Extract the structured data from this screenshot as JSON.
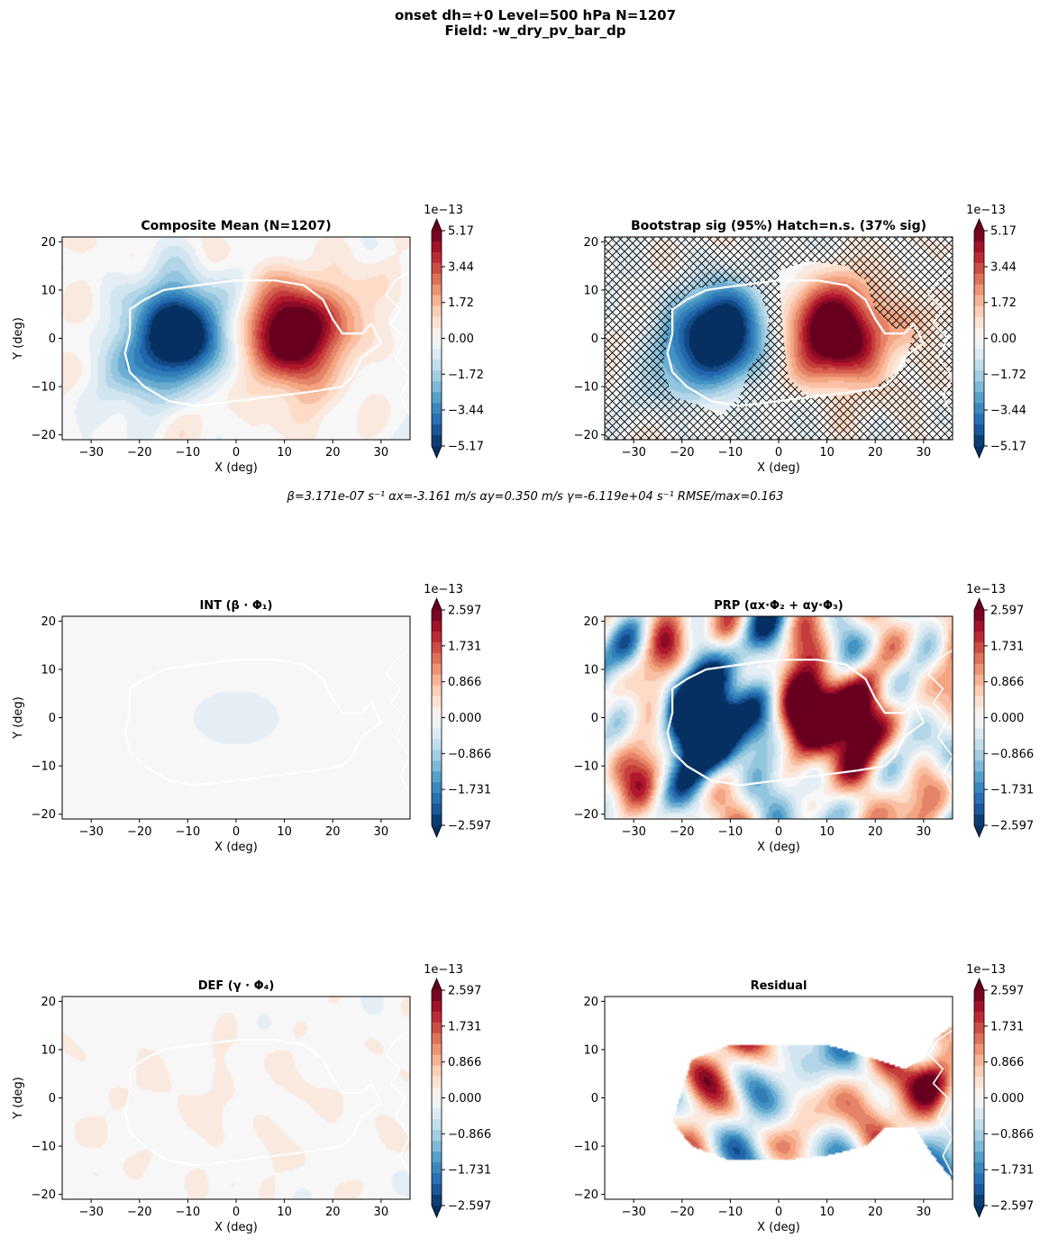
{
  "figure": {
    "title_line1": "onset  dh=+0   Level=500 hPa   N=1207",
    "title_line2": "Field: -w_dry_pv_bar_dp",
    "fit_params": "β=3.171e-07 s⁻¹   αx=-3.161 m/s   αy=0.350 m/s   γ=-6.119e+04 s⁻¹   RMSE/max=0.163"
  },
  "colormap": {
    "name": "RdBu_r",
    "stops": [
      "#053061",
      "#2166ac",
      "#4393c3",
      "#92c5de",
      "#d1e5f0",
      "#f7f7f7",
      "#fddbc7",
      "#f4a582",
      "#d6604d",
      "#b2182b",
      "#67001f"
    ],
    "contour_color": "#ffffff"
  },
  "chart_data": [
    {
      "id": "composite",
      "type": "heatmap",
      "title": "Composite Mean  (N=1207)",
      "xlabel": "X (deg)",
      "ylabel": "Y (deg)",
      "xlim": [
        -36,
        36
      ],
      "ylim": [
        -21,
        21
      ],
      "xticks": [
        "−30",
        "−20",
        "−10",
        "0",
        "10",
        "20",
        "30"
      ],
      "yticks": [
        "20",
        "10",
        "0",
        "−10",
        "−20"
      ],
      "colorbar": {
        "scale": "1e−13",
        "ticks": [
          "5.17",
          "3.44",
          "1.72",
          "0.00",
          "−1.72",
          "−3.44",
          "−5.17"
        ],
        "vmax": 5.17
      },
      "blobs": [
        {
          "x": -12,
          "y": 1,
          "sx": 6.5,
          "sy": 7,
          "amp": -7.0
        },
        {
          "x": 12,
          "y": 1,
          "sx": 6.5,
          "sy": 7,
          "amp": 7.0
        },
        {
          "x": -22,
          "y": -8,
          "sx": 5,
          "sy": 6,
          "amp": -1.5
        },
        {
          "x": 28,
          "y": 4,
          "sx": 5,
          "sy": 6,
          "amp": 1.0
        }
      ],
      "noise": 0.35,
      "hatch": false,
      "mask": false
    },
    {
      "id": "bootstrap",
      "type": "heatmap",
      "title": "Bootstrap sig (95%)  Hatch=n.s.  (37% sig)",
      "xlabel": "X (deg)",
      "ylabel": "",
      "xlim": [
        -36,
        36
      ],
      "ylim": [
        -21,
        21
      ],
      "xticks": [
        "−30",
        "−20",
        "−10",
        "0",
        "10",
        "20",
        "30"
      ],
      "yticks": [
        "20",
        "10",
        "0",
        "−10",
        "−20"
      ],
      "colorbar": {
        "scale": "1e−13",
        "ticks": [
          "5.17",
          "3.44",
          "1.72",
          "0.00",
          "−1.72",
          "−3.44",
          "−5.17"
        ],
        "vmax": 5.17
      },
      "blobs": [
        {
          "x": -12,
          "y": 1,
          "sx": 6.5,
          "sy": 7,
          "amp": -7.0
        },
        {
          "x": 12,
          "y": 1,
          "sx": 6.5,
          "sy": 7,
          "amp": 7.0
        },
        {
          "x": -22,
          "y": -8,
          "sx": 5,
          "sy": 6,
          "amp": -1.5
        },
        {
          "x": 28,
          "y": 4,
          "sx": 5,
          "sy": 6,
          "amp": 1.0
        }
      ],
      "noise": 0.35,
      "hatch": true,
      "significant_fraction": 0.37,
      "mask": false
    },
    {
      "id": "int",
      "type": "heatmap",
      "title": "INT (β · Φ₁)",
      "xlabel": "X (deg)",
      "ylabel": "Y (deg)",
      "xlim": [
        -36,
        36
      ],
      "ylim": [
        -21,
        21
      ],
      "xticks": [
        "−30",
        "−20",
        "−10",
        "0",
        "10",
        "20",
        "30"
      ],
      "yticks": [
        "20",
        "10",
        "0",
        "−10",
        "−20"
      ],
      "colorbar": {
        "scale": "1e−13",
        "ticks": [
          "2.597",
          "1.731",
          "0.866",
          "0.000",
          "−0.866",
          "−1.731",
          "−2.597"
        ],
        "vmax": 2.597
      },
      "blobs": [
        {
          "x": 0,
          "y": 0,
          "sx": 14,
          "sy": 9,
          "amp": -0.3
        },
        {
          "x": 0,
          "y": 0,
          "sx": 40,
          "sy": 30,
          "amp": 0.12
        }
      ],
      "noise": 0.0,
      "hatch": false,
      "mask": false
    },
    {
      "id": "prp",
      "type": "heatmap",
      "title": "PRP (αx·Φ₂ + αy·Φ₃)",
      "xlabel": "X (deg)",
      "ylabel": "",
      "xlim": [
        -36,
        36
      ],
      "ylim": [
        -21,
        21
      ],
      "xticks": [
        "−30",
        "−20",
        "−10",
        "0",
        "10",
        "20",
        "30"
      ],
      "yticks": [
        "20",
        "10",
        "0",
        "−10",
        "−20"
      ],
      "colorbar": {
        "scale": "1e−13",
        "ticks": [
          "2.597",
          "1.731",
          "0.866",
          "0.000",
          "−0.866",
          "−1.731",
          "−2.597"
        ],
        "vmax": 2.597
      },
      "blobs": [
        {
          "x": -12,
          "y": 0,
          "sx": 6.5,
          "sy": 7,
          "amp": -5.0
        },
        {
          "x": 12,
          "y": 1,
          "sx": 6.5,
          "sy": 6.5,
          "amp": 5.0
        }
      ],
      "noise": 1.4,
      "hatch": false,
      "mask": false
    },
    {
      "id": "def",
      "type": "heatmap",
      "title": "DEF (γ · Φ₄)",
      "xlabel": "X (deg)",
      "ylabel": "Y (deg)",
      "xlim": [
        -36,
        36
      ],
      "ylim": [
        -21,
        21
      ],
      "xticks": [
        "−30",
        "−20",
        "−10",
        "0",
        "10",
        "20",
        "30"
      ],
      "yticks": [
        "20",
        "10",
        "0",
        "−10",
        "−20"
      ],
      "colorbar": {
        "scale": "1e−13",
        "ticks": [
          "2.597",
          "1.731",
          "0.866",
          "0.000",
          "−0.866",
          "−1.731",
          "−2.597"
        ],
        "vmax": 2.597
      },
      "blobs": [
        {
          "x": 0,
          "y": 0,
          "sx": 25,
          "sy": 15,
          "amp": 0.1
        }
      ],
      "noise": 0.1,
      "hatch": false,
      "mask": false
    },
    {
      "id": "residual",
      "type": "heatmap",
      "title": "Residual",
      "xlabel": "X (deg)",
      "ylabel": "",
      "xlim": [
        -36,
        36
      ],
      "ylim": [
        -21,
        21
      ],
      "xticks": [
        "−30",
        "−20",
        "−10",
        "0",
        "10",
        "20",
        "30"
      ],
      "yticks": [
        "20",
        "10",
        "0",
        "−10",
        "−20"
      ],
      "colorbar": {
        "scale": "1e−13",
        "ticks": [
          "2.597",
          "1.731",
          "0.866",
          "0.000",
          "−0.866",
          "−1.731",
          "−2.597"
        ],
        "vmax": 2.597
      },
      "blobs": [
        {
          "x": 32,
          "y": 4,
          "sx": 3,
          "sy": 4,
          "amp": 3.0
        }
      ],
      "noise": 1.5,
      "hatch": false,
      "mask": true
    }
  ]
}
